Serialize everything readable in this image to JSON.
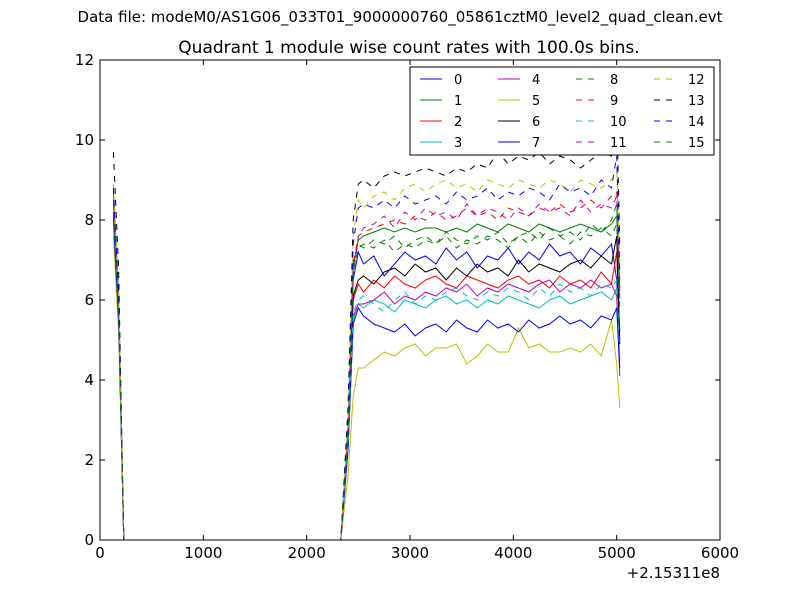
{
  "figure": {
    "suptitle": "Data file: modeM0/AS1G06_033T01_9000000760_05861cztM0_level2_quad_clean.evt"
  },
  "chart_data": {
    "type": "line",
    "title": "Quadrant 1 module wise count rates with 100.0s bins.",
    "xlabel": "",
    "ylabel": "",
    "x_offset_label": "+2.15311e8",
    "xlim": [
      0,
      6000
    ],
    "ylim": [
      0,
      12
    ],
    "xticks": [
      0,
      1000,
      2000,
      3000,
      4000,
      5000,
      6000
    ],
    "yticks": [
      0,
      2,
      4,
      6,
      8,
      10,
      12
    ],
    "grid": false,
    "legend": {
      "location": "top-right",
      "columns": 4
    },
    "x": [
      130,
      180,
      230,
      330,
      430,
      530,
      630,
      730,
      830,
      930,
      1030,
      1130,
      1230,
      1330,
      1430,
      1530,
      1630,
      1730,
      1830,
      1930,
      2030,
      2130,
      2230,
      2330,
      2400,
      2450,
      2500,
      2550,
      2650,
      2750,
      2850,
      2950,
      3050,
      3150,
      3250,
      3350,
      3450,
      3550,
      3650,
      3750,
      3850,
      3950,
      4050,
      4150,
      4250,
      4350,
      4450,
      4550,
      4650,
      4750,
      4850,
      4950,
      5000,
      5030
    ],
    "series": [
      {
        "name": "0",
        "color": "#0000ff",
        "dash": "solid",
        "values": [
          8.6,
          5.8,
          0,
          0,
          0,
          0,
          0,
          0,
          0,
          0,
          0,
          0,
          0,
          0,
          0,
          0,
          0,
          0,
          0,
          0,
          0,
          0,
          0,
          0,
          2.5,
          6.5,
          7.2,
          6.9,
          7.1,
          6.6,
          6.9,
          7.2,
          7.0,
          7.1,
          6.9,
          7.3,
          7.0,
          7.2,
          6.8,
          7.1,
          7.0,
          7.3,
          6.9,
          7.2,
          7.0,
          7.4,
          7.1,
          7.2,
          6.9,
          7.3,
          7.1,
          7.4,
          6.5,
          5.2
        ]
      },
      {
        "name": "1",
        "color": "#008000",
        "dash": "solid",
        "values": [
          8.3,
          5.6,
          0,
          0,
          0,
          0,
          0,
          0,
          0,
          0,
          0,
          0,
          0,
          0,
          0,
          0,
          0,
          0,
          0,
          0,
          0,
          0,
          0,
          0,
          2.8,
          6.8,
          7.5,
          7.6,
          7.7,
          7.8,
          7.7,
          7.8,
          7.7,
          7.8,
          7.8,
          7.7,
          7.8,
          7.7,
          7.9,
          7.8,
          7.7,
          7.9,
          7.8,
          7.7,
          7.9,
          7.8,
          7.7,
          7.8,
          7.9,
          7.8,
          7.7,
          7.9,
          8.1,
          6.3
        ]
      },
      {
        "name": "2",
        "color": "#ff0000",
        "dash": "solid",
        "values": [
          8.4,
          6.0,
          0,
          0,
          0,
          0,
          0,
          0,
          0,
          0,
          0,
          0,
          0,
          0,
          0,
          0,
          0,
          0,
          0,
          0,
          0,
          0,
          0,
          0,
          2.4,
          6.0,
          6.4,
          6.2,
          6.5,
          6.3,
          6.6,
          6.4,
          6.3,
          6.5,
          6.6,
          6.4,
          6.3,
          6.6,
          6.5,
          6.4,
          6.3,
          6.5,
          6.6,
          6.4,
          6.5,
          6.3,
          6.6,
          6.4,
          6.5,
          6.3,
          6.7,
          6.4,
          7.2,
          5.0
        ]
      },
      {
        "name": "3",
        "color": "#00bfbf",
        "dash": "solid",
        "values": [
          8.1,
          5.9,
          0,
          0,
          0,
          0,
          0,
          0,
          0,
          0,
          0,
          0,
          0,
          0,
          0,
          0,
          0,
          0,
          0,
          0,
          0,
          0,
          0,
          0,
          2.2,
          5.5,
          5.9,
          5.8,
          6.0,
          5.9,
          5.7,
          6.0,
          5.9,
          5.8,
          6.0,
          6.1,
          5.9,
          6.0,
          5.8,
          6.0,
          5.9,
          6.1,
          6.0,
          5.9,
          5.8,
          6.0,
          6.1,
          5.9,
          6.0,
          6.1,
          6.2,
          6.0,
          6.3,
          4.5
        ]
      },
      {
        "name": "4",
        "color": "#bf00bf",
        "dash": "solid",
        "values": [
          8.5,
          6.1,
          0,
          0,
          0,
          0,
          0,
          0,
          0,
          0,
          0,
          0,
          0,
          0,
          0,
          0,
          0,
          0,
          0,
          0,
          0,
          0,
          0,
          0,
          2.3,
          5.6,
          5.9,
          5.9,
          6.0,
          6.2,
          5.9,
          6.1,
          6.0,
          6.2,
          6.1,
          6.3,
          6.2,
          6.4,
          6.1,
          6.3,
          6.2,
          6.4,
          6.3,
          6.2,
          6.4,
          6.5,
          6.2,
          6.4,
          6.3,
          6.5,
          6.3,
          6.4,
          6.1,
          4.1
        ]
      },
      {
        "name": "5",
        "color": "#bfbf00",
        "dash": "solid",
        "values": [
          7.6,
          5.2,
          0,
          0,
          0,
          0,
          0,
          0,
          0,
          0,
          0,
          0,
          0,
          0,
          0,
          0,
          0,
          0,
          0,
          0,
          0,
          0,
          0,
          0,
          1.6,
          3.6,
          4.3,
          4.3,
          4.5,
          4.7,
          4.6,
          4.8,
          4.9,
          4.6,
          4.8,
          4.8,
          4.9,
          4.4,
          4.6,
          4.9,
          4.7,
          4.7,
          5.3,
          4.8,
          4.9,
          4.7,
          4.7,
          4.8,
          4.7,
          4.9,
          4.6,
          5.5,
          4.4,
          3.3
        ]
      },
      {
        "name": "6",
        "color": "#000000",
        "dash": "solid",
        "values": [
          8.2,
          5.7,
          0,
          0,
          0,
          0,
          0,
          0,
          0,
          0,
          0,
          0,
          0,
          0,
          0,
          0,
          0,
          0,
          0,
          0,
          0,
          0,
          0,
          0,
          2.6,
          6.1,
          6.5,
          6.6,
          6.4,
          6.7,
          6.8,
          6.6,
          6.9,
          6.7,
          6.8,
          6.5,
          6.8,
          6.6,
          6.9,
          6.7,
          6.8,
          6.6,
          7.0,
          6.7,
          6.9,
          6.8,
          6.7,
          6.9,
          7.0,
          6.8,
          7.1,
          6.9,
          7.6,
          4.9
        ]
      },
      {
        "name": "7",
        "color": "#0000ff",
        "dash": "solid",
        "values": [
          8.0,
          5.5,
          0,
          0,
          0,
          0,
          0,
          0,
          0,
          0,
          0,
          0,
          0,
          0,
          0,
          0,
          0,
          0,
          0,
          0,
          0,
          0,
          0,
          0,
          2.3,
          5.4,
          5.8,
          5.6,
          5.4,
          5.3,
          5.2,
          5.4,
          5.1,
          5.3,
          5.4,
          5.2,
          5.5,
          5.3,
          5.2,
          5.5,
          5.3,
          5.4,
          5.2,
          5.5,
          5.3,
          5.4,
          5.6,
          5.4,
          5.5,
          5.3,
          5.6,
          5.5,
          5.8,
          4.3
        ]
      },
      {
        "name": "8",
        "color": "#008000",
        "dash": "dashed",
        "values": [
          8.7,
          6.2,
          0,
          0,
          0,
          0,
          0,
          0,
          0,
          0,
          0,
          0,
          0,
          0,
          0,
          0,
          0,
          0,
          0,
          0,
          0,
          0,
          0,
          0,
          2.9,
          7.0,
          7.4,
          7.3,
          7.5,
          7.4,
          7.6,
          7.3,
          7.5,
          7.6,
          7.4,
          7.7,
          7.5,
          7.4,
          7.6,
          7.5,
          7.7,
          7.4,
          7.6,
          7.7,
          7.5,
          7.8,
          7.6,
          7.7,
          7.5,
          7.9,
          7.7,
          8.0,
          8.4,
          6.0
        ]
      },
      {
        "name": "9",
        "color": "#ff0000",
        "dash": "dashed",
        "values": [
          8.6,
          6.0,
          0,
          0,
          0,
          0,
          0,
          0,
          0,
          0,
          0,
          0,
          0,
          0,
          0,
          0,
          0,
          0,
          0,
          0,
          0,
          0,
          0,
          0,
          2.8,
          6.9,
          7.6,
          7.7,
          7.8,
          7.9,
          8.0,
          7.9,
          8.1,
          8.0,
          8.2,
          8.0,
          8.1,
          8.3,
          8.1,
          8.2,
          8.0,
          8.3,
          8.2,
          8.1,
          8.3,
          8.2,
          8.4,
          8.2,
          8.3,
          8.5,
          8.3,
          8.6,
          8.7,
          6.5
        ]
      },
      {
        "name": "10",
        "color": "#00bfbf",
        "dash": "dashed",
        "values": [
          8.3,
          5.8,
          0,
          0,
          0,
          0,
          0,
          0,
          0,
          0,
          0,
          0,
          0,
          0,
          0,
          0,
          0,
          0,
          0,
          0,
          0,
          0,
          0,
          0,
          2.4,
          5.7,
          6.0,
          6.1,
          5.9,
          5.7,
          6.0,
          6.2,
          5.9,
          6.1,
          6.0,
          6.2,
          6.3,
          6.1,
          6.0,
          6.2,
          6.1,
          6.3,
          6.2,
          6.0,
          6.3,
          6.1,
          6.4,
          6.2,
          6.3,
          6.1,
          6.4,
          6.3,
          6.5,
          4.6
        ]
      },
      {
        "name": "11",
        "color": "#bf00bf",
        "dash": "dashed",
        "values": [
          8.4,
          5.9,
          0,
          0,
          0,
          0,
          0,
          0,
          0,
          0,
          0,
          0,
          0,
          0,
          0,
          0,
          0,
          0,
          0,
          0,
          0,
          0,
          0,
          0,
          2.6,
          6.6,
          7.6,
          7.8,
          7.9,
          8.1,
          7.8,
          8.2,
          8.0,
          8.3,
          8.1,
          8.2,
          8.0,
          8.4,
          8.1,
          8.3,
          8.2,
          8.0,
          8.3,
          8.1,
          8.4,
          8.2,
          8.3,
          8.1,
          8.5,
          8.2,
          8.4,
          8.3,
          8.6,
          6.2
        ]
      },
      {
        "name": "12",
        "color": "#bfbf00",
        "dash": "dashed",
        "values": [
          8.9,
          6.3,
          0,
          0,
          0,
          0,
          0,
          0,
          0,
          0,
          0,
          0,
          0,
          0,
          0,
          0,
          0,
          0,
          0,
          0,
          0,
          0,
          0,
          0,
          3.0,
          7.6,
          8.5,
          8.3,
          8.6,
          8.7,
          8.5,
          8.8,
          8.9,
          8.7,
          8.9,
          9.0,
          8.8,
          8.9,
          8.7,
          9.0,
          8.9,
          8.8,
          9.0,
          8.9,
          8.8,
          9.0,
          8.9,
          8.7,
          9.0,
          8.9,
          8.8,
          9.0,
          9.2,
          6.9
        ]
      },
      {
        "name": "13",
        "color": "#000000",
        "dash": "dashed",
        "values": [
          9.7,
          6.8,
          0,
          0,
          0,
          0,
          0,
          0,
          0,
          0,
          0,
          0,
          0,
          0,
          0,
          0,
          0,
          0,
          0,
          0,
          0,
          0,
          0,
          0,
          3.3,
          8.0,
          8.9,
          9.0,
          8.8,
          9.1,
          9.2,
          9.1,
          9.2,
          9.3,
          9.2,
          9.1,
          9.3,
          9.2,
          9.4,
          9.3,
          9.7,
          9.4,
          9.6,
          9.5,
          9.7,
          9.4,
          9.6,
          9.5,
          9.3,
          9.5,
          9.7,
          9.6,
          10.8,
          7.3
        ]
      },
      {
        "name": "14",
        "color": "#0000ff",
        "dash": "dashed",
        "values": [
          8.8,
          6.1,
          0,
          0,
          0,
          0,
          0,
          0,
          0,
          0,
          0,
          0,
          0,
          0,
          0,
          0,
          0,
          0,
          0,
          0,
          0,
          0,
          0,
          0,
          2.9,
          7.4,
          8.3,
          8.4,
          8.3,
          8.5,
          8.3,
          8.6,
          8.4,
          8.5,
          8.6,
          8.4,
          8.7,
          8.5,
          8.6,
          8.8,
          8.5,
          8.7,
          8.6,
          8.8,
          8.7,
          8.5,
          8.9,
          8.7,
          8.8,
          8.6,
          9.0,
          8.8,
          9.6,
          6.7
        ]
      },
      {
        "name": "15",
        "color": "#008000",
        "dash": "dashed",
        "values": [
          8.2,
          5.7,
          0,
          0,
          0,
          0,
          0,
          0,
          0,
          0,
          0,
          0,
          0,
          0,
          0,
          0,
          0,
          0,
          0,
          0,
          0,
          0,
          0,
          0,
          2.7,
          6.7,
          7.3,
          7.4,
          7.3,
          7.5,
          7.2,
          7.4,
          7.3,
          7.5,
          7.4,
          7.6,
          7.3,
          7.5,
          7.4,
          7.6,
          7.5,
          7.3,
          7.6,
          7.4,
          7.7,
          7.5,
          7.6,
          7.4,
          7.7,
          7.6,
          7.8,
          7.6,
          7.9,
          5.8
        ]
      }
    ]
  }
}
